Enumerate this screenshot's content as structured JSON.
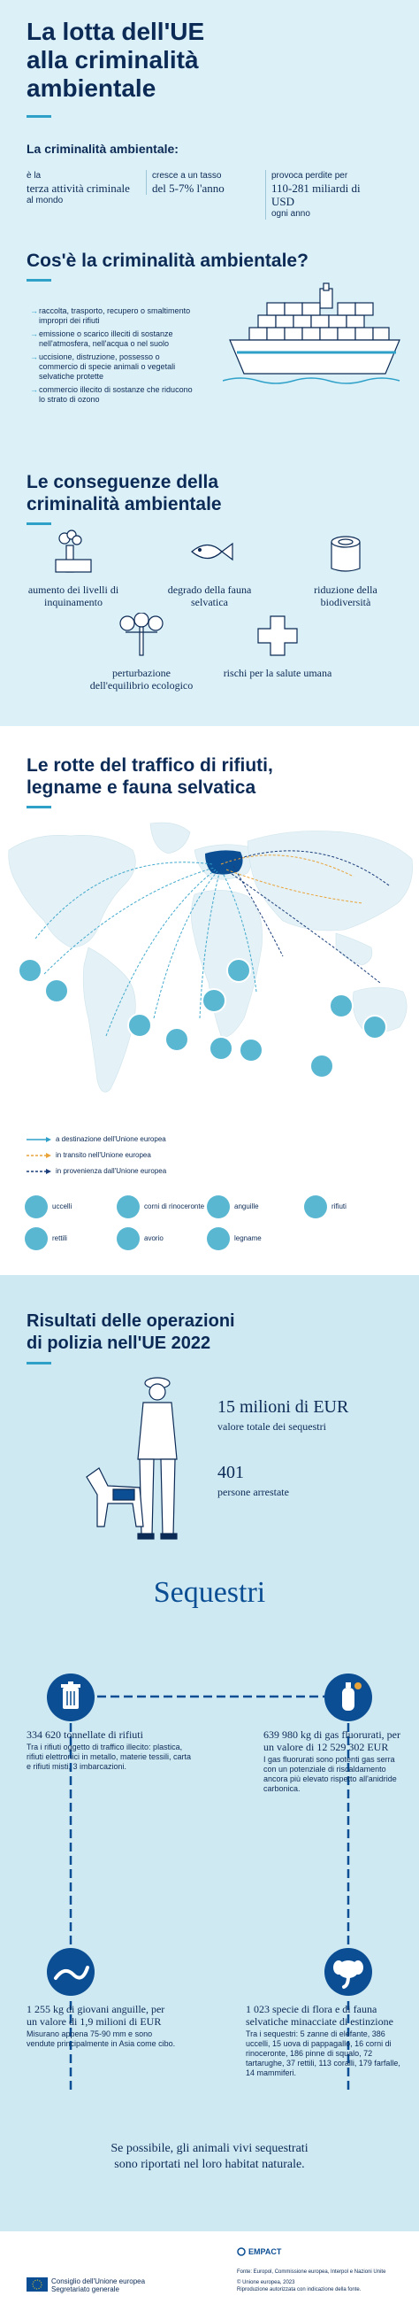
{
  "header": {
    "title_line1": "La lotta dell'UE",
    "title_line2": "alla criminalità",
    "title_line3": "ambientale",
    "subtitle": "La criminalità ambientale:",
    "stats": [
      {
        "pre": "è la",
        "value": "terza attività criminale",
        "post": "al mondo"
      },
      {
        "pre": "cresce a un tasso",
        "value": "del 5-7% l'anno",
        "post": ""
      },
      {
        "pre": "provoca perdite per",
        "value": "110-281 miliardi di USD",
        "post": "ogni anno"
      }
    ]
  },
  "what": {
    "title": "Cos'è la criminalità ambientale?",
    "items": [
      "raccolta, trasporto, recupero o smaltimento impropri dei rifiuti",
      "emissione o scarico illeciti di sostanze nell'atmosfera, nell'acqua o nel suolo",
      "uccisione, distruzione, possesso o commercio di specie animali o vegetali selvatiche protette",
      "commercio illecito di sostanze che riducono lo strato di ozono"
    ]
  },
  "consequences": {
    "title_line1": "Le conseguenze della",
    "title_line2": "criminalità ambientale",
    "items": [
      {
        "label": "aumento dei livelli di inquinamento",
        "icon": "factory-smoke-icon"
      },
      {
        "label": "degrado della fauna selvatica",
        "icon": "fish-icon"
      },
      {
        "label": "riduzione della biodiversità",
        "icon": "tree-stump-icon"
      },
      {
        "label": "perturbazione dell'equilibrio ecologico",
        "icon": "balance-icon"
      },
      {
        "label": "rischi per la salute umana",
        "icon": "health-cross-icon"
      }
    ]
  },
  "routes": {
    "title_line1": "Le rotte del traffico di rifiuti,",
    "title_line2": "legname e fauna selvatica",
    "legend_routes": [
      {
        "label": "a destinazione dell'Unione europea",
        "color": "#2fa1c9"
      },
      {
        "label": "in transito nell'Unione europea",
        "color": "#e8a33a"
      },
      {
        "label": "in provenienza dall'Unione europea",
        "color": "#1c3f7c"
      }
    ],
    "legend_items": [
      {
        "label": "uccelli",
        "icon": "bird-icon"
      },
      {
        "label": "corni di rinoceronte",
        "icon": "rhino-horn-icon"
      },
      {
        "label": "anguille",
        "icon": "eel-icon"
      },
      {
        "label": "rifiuti",
        "icon": "waste-icon"
      },
      {
        "label": "rettili",
        "icon": "reptile-icon"
      },
      {
        "label": "avorio",
        "icon": "ivory-icon"
      },
      {
        "label": "legname",
        "icon": "timber-icon"
      }
    ]
  },
  "results": {
    "title_line1": "Risultati delle operazioni",
    "title_line2": "di polizia nell'UE 2022",
    "stat1_value": "15 milioni di EUR",
    "stat1_label": "valore totale dei sequestri",
    "stat2_value": "401",
    "stat2_label": "persone arrestate"
  },
  "seizures": {
    "title": "Sequestri",
    "items": [
      {
        "headline": "334 620 tonnellate di rifiuti",
        "text": "Tra i rifiuti oggetto di traffico illecito: plastica, rifiuti elettronici in metallo, materie tessili, carta e rifiuti misti, 3 imbarcazioni.",
        "icon": "trash-bin-icon"
      },
      {
        "headline": "639 980 kg di gas fluorurati, per un valore di 12 529 302 EUR",
        "text": "I gas fluorurati sono potenti gas serra con un potenziale di riscaldamento ancora più elevato rispetto all'anidride carbonica.",
        "icon": "gas-cylinder-icon"
      },
      {
        "headline": "1 255 kg di giovani anguille, per un valore di 1,9 milioni di EUR",
        "text": "Misurano appena 75-90 mm e sono vendute principalmente in Asia come cibo.",
        "icon": "eel-icon"
      },
      {
        "headline": "1 023 specie di flora e di fauna selvatiche minacciate di estinzione",
        "text": "Tra i sequestri: 5 zanne di elefante, 386 uccelli, 15 uova di pappagallo, 16 corni di rinoceronte, 186 pinne di squalo, 72 tartarughe, 37 rettili, 113 coralli, 179 farfalle, 14 mammiferi.",
        "icon": "elephant-icon"
      }
    ],
    "closing_line1": "Se possibile, gli animali vivi sequestrati",
    "closing_line2": "sono riportati nel loro habitat naturale."
  },
  "footer": {
    "org_line1": "Consiglio dell'Unione europea",
    "org_line2": "Segretariato generale",
    "partner": "EMPACT",
    "source": "Fonte: Europol, Commissione europea, Interpol e Nazioni Unite",
    "copyright": "© Unione europea, 2023",
    "reproduction": "Riproduzione autorizzata con indicazione della fonte."
  },
  "colors": {
    "navy": "#0b2a55",
    "accent": "#2fa1c9",
    "light_bg": "#dcf0f7",
    "section_bg": "#cfe9f3"
  }
}
